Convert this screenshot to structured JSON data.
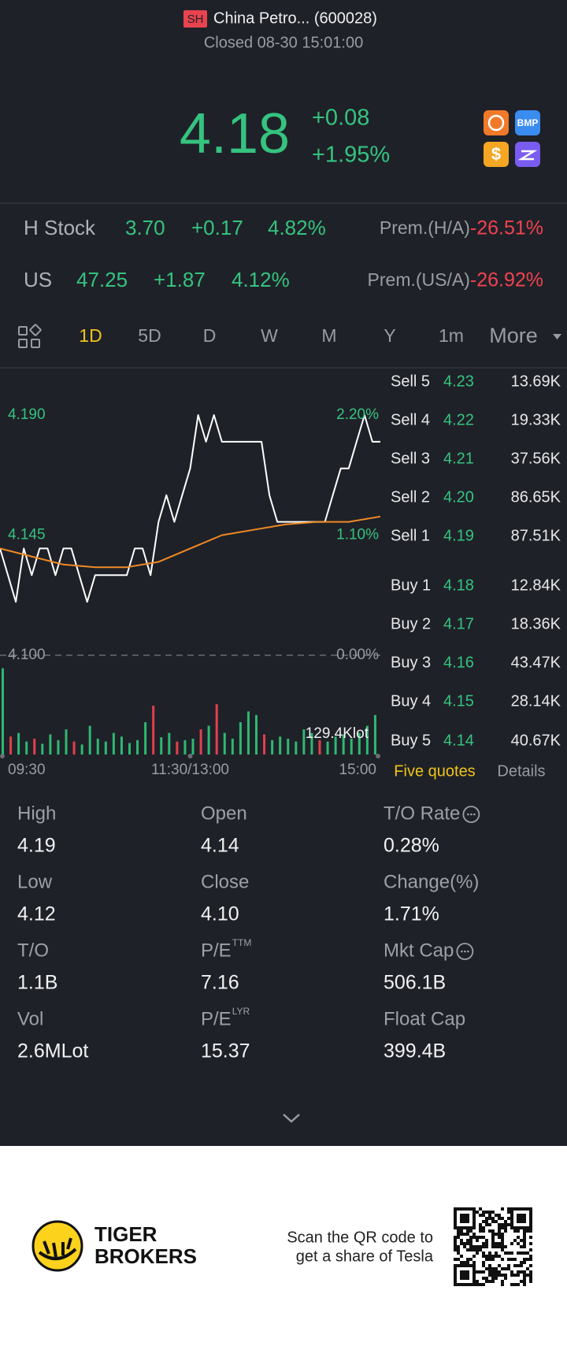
{
  "header": {
    "market": "SH",
    "name": "China Petro... (600028)",
    "status": "Closed 08-30 15:01:00"
  },
  "quote": {
    "price": "4.18",
    "change": "+0.08",
    "change_pct": "+1.95%",
    "icons": [
      "BMP",
      "$"
    ]
  },
  "related": [
    {
      "label": "H Stock",
      "price": "3.70",
      "change": "+0.17",
      "change_pct": "4.82%",
      "prem_label": "Prem.(H/A)",
      "prem": "-26.51%"
    },
    {
      "label": "US",
      "price": "47.25",
      "change": "+1.87",
      "change_pct": "4.12%",
      "prem_label": "Prem.(US/A)",
      "prem": "-26.92%"
    }
  ],
  "tabs": [
    "1D",
    "5D",
    "D",
    "W",
    "M",
    "Y",
    "1m",
    "More"
  ],
  "chart_data": [
    {
      "type": "line",
      "xlim": [
        0,
        240
      ],
      "xticks": [
        {
          "value": 0,
          "label": "09:30"
        },
        {
          "value": 120,
          "label": "11:30/13:00"
        },
        {
          "value": 240,
          "label": "15:00"
        }
      ],
      "ylim": [
        4.1,
        4.19
      ],
      "yticks": [
        {
          "value": 4.1,
          "label": "4.100"
        },
        {
          "value": 4.145,
          "label": "4.145"
        },
        {
          "value": 4.19,
          "label": "4.190"
        }
      ],
      "y2lim": [
        0,
        2.2
      ],
      "y2ticks": [
        {
          "value": 0,
          "label": "0.00%"
        },
        {
          "value": 1.1,
          "label": "1.10%"
        },
        {
          "value": 2.2,
          "label": "2.20%"
        }
      ],
      "series": [
        {
          "color": "#ffffff",
          "x": [
            0,
            5,
            10,
            15,
            20,
            25,
            30,
            35,
            40,
            45,
            50,
            55,
            60,
            65,
            70,
            75,
            80,
            85,
            90,
            95,
            100,
            105,
            110,
            115,
            120,
            125,
            130,
            135,
            140,
            145,
            150,
            155,
            160,
            165,
            170,
            175,
            180,
            185,
            190,
            195,
            200,
            205,
            210,
            215,
            220,
            225,
            230,
            235,
            240
          ],
          "values": [
            4.14,
            4.13,
            4.12,
            4.14,
            4.13,
            4.14,
            4.14,
            4.13,
            4.14,
            4.14,
            4.13,
            4.12,
            4.13,
            4.13,
            4.13,
            4.13,
            4.13,
            4.14,
            4.14,
            4.13,
            4.15,
            4.16,
            4.15,
            4.16,
            4.17,
            4.19,
            4.18,
            4.19,
            4.18,
            4.18,
            4.18,
            4.18,
            4.18,
            4.18,
            4.16,
            4.15,
            4.15,
            4.15,
            4.15,
            4.15,
            4.15,
            4.15,
            4.16,
            4.17,
            4.17,
            4.18,
            4.19,
            4.18,
            4.18
          ]
        },
        {
          "color": "#f08a24",
          "x": [
            0,
            20,
            40,
            60,
            80,
            100,
            120,
            140,
            160,
            180,
            200,
            220,
            240
          ],
          "values": [
            4.14,
            4.137,
            4.134,
            4.133,
            4.133,
            4.135,
            4.14,
            4.145,
            4.147,
            4.149,
            4.15,
            4.15,
            4.152
          ]
        }
      ]
    },
    {
      "type": "bar",
      "xlim": [
        0,
        240
      ],
      "ylim": [
        0,
        129.4
      ],
      "yticks": [
        {
          "value": 129.4,
          "label": "129.4Klot"
        }
      ],
      "x": [
        0,
        5,
        10,
        15,
        20,
        25,
        30,
        35,
        40,
        45,
        50,
        55,
        60,
        65,
        70,
        75,
        80,
        85,
        90,
        95,
        100,
        105,
        110,
        115,
        120,
        125,
        130,
        135,
        140,
        145,
        150,
        155,
        160,
        165,
        170,
        175,
        180,
        185,
        190,
        195,
        200,
        205,
        210,
        215,
        220,
        225,
        230,
        235
      ],
      "values": [
        120,
        25,
        30,
        18,
        22,
        15,
        28,
        20,
        35,
        18,
        14,
        40,
        22,
        18,
        30,
        25,
        16,
        20,
        45,
        68,
        24,
        30,
        18,
        20,
        22,
        35,
        40,
        70,
        30,
        22,
        45,
        60,
        55,
        28,
        20,
        25,
        22,
        18,
        35,
        30,
        20,
        18,
        25,
        28,
        22,
        30,
        40,
        55
      ],
      "colors": [
        "#2fb872",
        "#e0414d",
        "#2fb872",
        "#2fb872",
        "#e0414d",
        "#2fb872",
        "#2fb872",
        "#2fb872",
        "#2fb872",
        "#e0414d",
        "#2fb872",
        "#2fb872",
        "#2fb872",
        "#2fb872",
        "#2fb872",
        "#2fb872",
        "#2fb872",
        "#2fb872",
        "#2fb872",
        "#e0414d",
        "#2fb872",
        "#2fb872",
        "#e0414d",
        "#2fb872",
        "#2fb872",
        "#e0414d",
        "#2fb872",
        "#e0414d",
        "#2fb872",
        "#2fb872",
        "#2fb872",
        "#2fb872",
        "#2fb872",
        "#e0414d",
        "#2fb872",
        "#2fb872",
        "#2fb872",
        "#2fb872",
        "#2fb872",
        "#2fb872",
        "#e0414d",
        "#2fb872",
        "#2fb872",
        "#2fb872",
        "#2fb872",
        "#2fb872",
        "#2fb872",
        "#2fb872"
      ]
    }
  ],
  "order_book": {
    "sell": [
      {
        "label": "Sell 5",
        "price": "4.23",
        "volume": "13.69K"
      },
      {
        "label": "Sell 4",
        "price": "4.22",
        "volume": "19.33K"
      },
      {
        "label": "Sell 3",
        "price": "4.21",
        "volume": "37.56K"
      },
      {
        "label": "Sell 2",
        "price": "4.20",
        "volume": "86.65K"
      },
      {
        "label": "Sell 1",
        "price": "4.19",
        "volume": "87.51K"
      }
    ],
    "buy": [
      {
        "label": "Buy 1",
        "price": "4.18",
        "volume": "12.84K"
      },
      {
        "label": "Buy 2",
        "price": "4.17",
        "volume": "18.36K"
      },
      {
        "label": "Buy 3",
        "price": "4.16",
        "volume": "43.47K"
      },
      {
        "label": "Buy 4",
        "price": "4.15",
        "volume": "28.14K"
      },
      {
        "label": "Buy 5",
        "price": "4.14",
        "volume": "40.67K"
      }
    ],
    "tabs": [
      "Five quotes",
      "Details"
    ]
  },
  "stats": [
    {
      "label": "High",
      "value": "4.19"
    },
    {
      "label": "Open",
      "value": "4.14"
    },
    {
      "label": "T/O Rate",
      "value": "0.28%",
      "info": true
    },
    {
      "label": "Low",
      "value": "4.12"
    },
    {
      "label": "Close",
      "value": "4.10"
    },
    {
      "label": "Change(%)",
      "value": "1.71%"
    },
    {
      "label": "T/O",
      "value": "1.1B"
    },
    {
      "label": "P/E",
      "sup": "TTM",
      "value": "7.16"
    },
    {
      "label": "Mkt Cap",
      "value": "506.1B",
      "info": true
    },
    {
      "label": "Vol",
      "value": "2.6MLot"
    },
    {
      "label": "P/E",
      "sup": "LYR",
      "value": "15.37"
    },
    {
      "label": "Float Cap",
      "value": "399.4B"
    }
  ],
  "footer": {
    "brand": [
      "TIGER",
      "BROKERS"
    ],
    "promo": [
      "Scan the QR code to",
      "get a share of Tesla"
    ]
  }
}
